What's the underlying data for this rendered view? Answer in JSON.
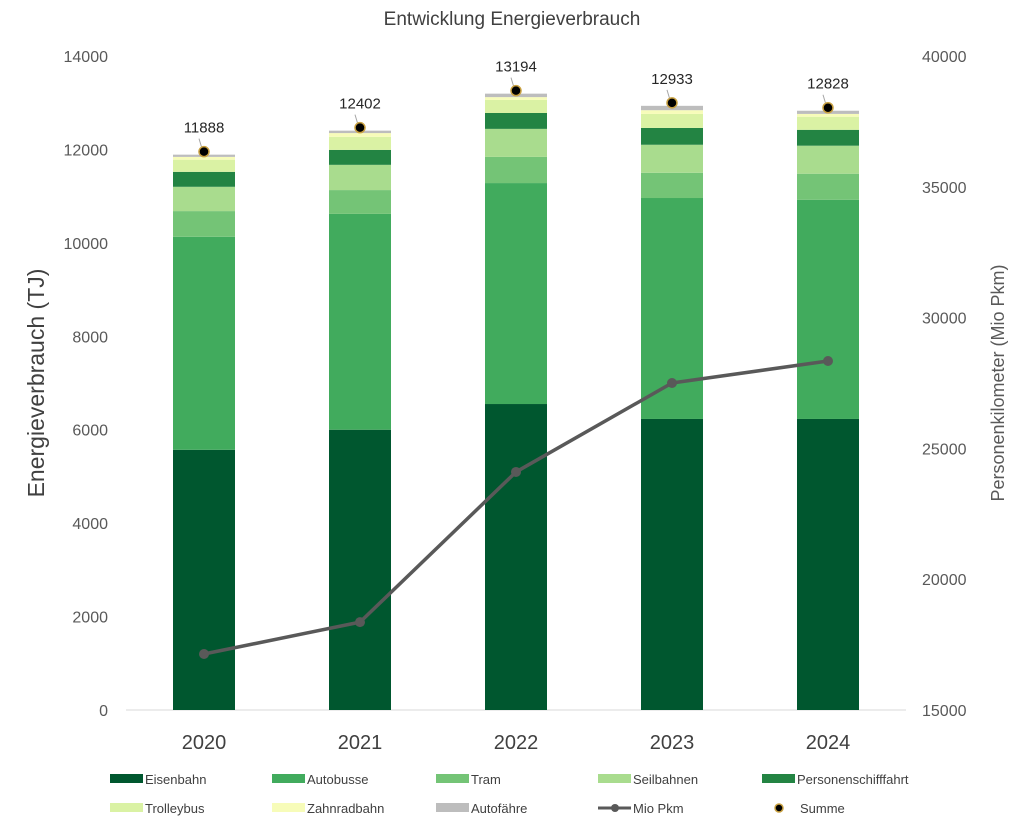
{
  "chart_data": {
    "type": "bar",
    "subtype": "stacked-bar-with-line",
    "title": "Entwicklung Energieverbrauch",
    "categories": [
      "2020",
      "2021",
      "2022",
      "2023",
      "2024"
    ],
    "xlabel": "",
    "ylabel": "Energieverbrauch (TJ)",
    "ylim": [
      0,
      14000
    ],
    "yticks": [
      "0",
      "2000",
      "4000",
      "6000",
      "8000",
      "10000",
      "12000",
      "14000"
    ],
    "y2label": "Personenkilometer (Mio Pkm)",
    "y2lim": [
      15000,
      40000
    ],
    "y2ticks": [
      "15000",
      "20000",
      "25000",
      "30000",
      "35000",
      "40000"
    ],
    "grid": false,
    "legend_position": "bottom",
    "series": [
      {
        "name": "Eisenbahn",
        "color": "#00572F",
        "values": [
          5570,
          6000,
          6550,
          6230,
          6230
        ]
      },
      {
        "name": "Autobusse",
        "color": "#41AB5D",
        "values": [
          4560,
          4620,
          4730,
          4730,
          4690
        ]
      },
      {
        "name": "Tram",
        "color": "#74C476",
        "values": [
          550,
          510,
          560,
          540,
          560
        ]
      },
      {
        "name": "Seilbahnen",
        "color": "#A9DC8E",
        "values": [
          520,
          540,
          600,
          600,
          600
        ]
      },
      {
        "name": "Personenschifffahrt",
        "color": "#238443",
        "values": [
          320,
          320,
          340,
          360,
          340
        ]
      },
      {
        "name": "Trolleybus",
        "color": "#DAF2A4",
        "values": [
          260,
          280,
          280,
          300,
          280
        ]
      },
      {
        "name": "Zahnradbahn",
        "color": "#F7FCB9",
        "values": [
          60,
          80,
          60,
          80,
          60
        ]
      },
      {
        "name": "Autofähre",
        "color": "#BDBDBD",
        "values": [
          48,
          52,
          74,
          93,
          68
        ]
      }
    ],
    "line_series": {
      "name": "Mio Pkm",
      "axis": "right",
      "color": "#595959",
      "values": [
        17140,
        18360,
        24100,
        27500,
        28340
      ]
    },
    "sum_series": {
      "name": "Summe",
      "values": [
        11888,
        12402,
        13194,
        12933,
        12828
      ],
      "labels": [
        "11888",
        "12402",
        "13194",
        "12933",
        "12828"
      ]
    },
    "legend": [
      {
        "label": "Eisenbahn",
        "kind": "box",
        "color": "#00572F"
      },
      {
        "label": "Autobusse",
        "kind": "box",
        "color": "#41AB5D"
      },
      {
        "label": "Tram",
        "kind": "box",
        "color": "#74C476"
      },
      {
        "label": "Seilbahnen",
        "kind": "box",
        "color": "#A9DC8E"
      },
      {
        "label": "Personenschifffahrt",
        "kind": "box",
        "color": "#238443"
      },
      {
        "label": "Trolleybus",
        "kind": "box",
        "color": "#DAF2A4"
      },
      {
        "label": "Zahnradbahn",
        "kind": "box",
        "color": "#F7FCB9"
      },
      {
        "label": "Autofähre",
        "kind": "box",
        "color": "#BDBDBD"
      },
      {
        "label": "Mio Pkm",
        "kind": "line",
        "color": "#595959"
      },
      {
        "label": "Summe",
        "kind": "marker",
        "color": "#000000"
      }
    ]
  }
}
